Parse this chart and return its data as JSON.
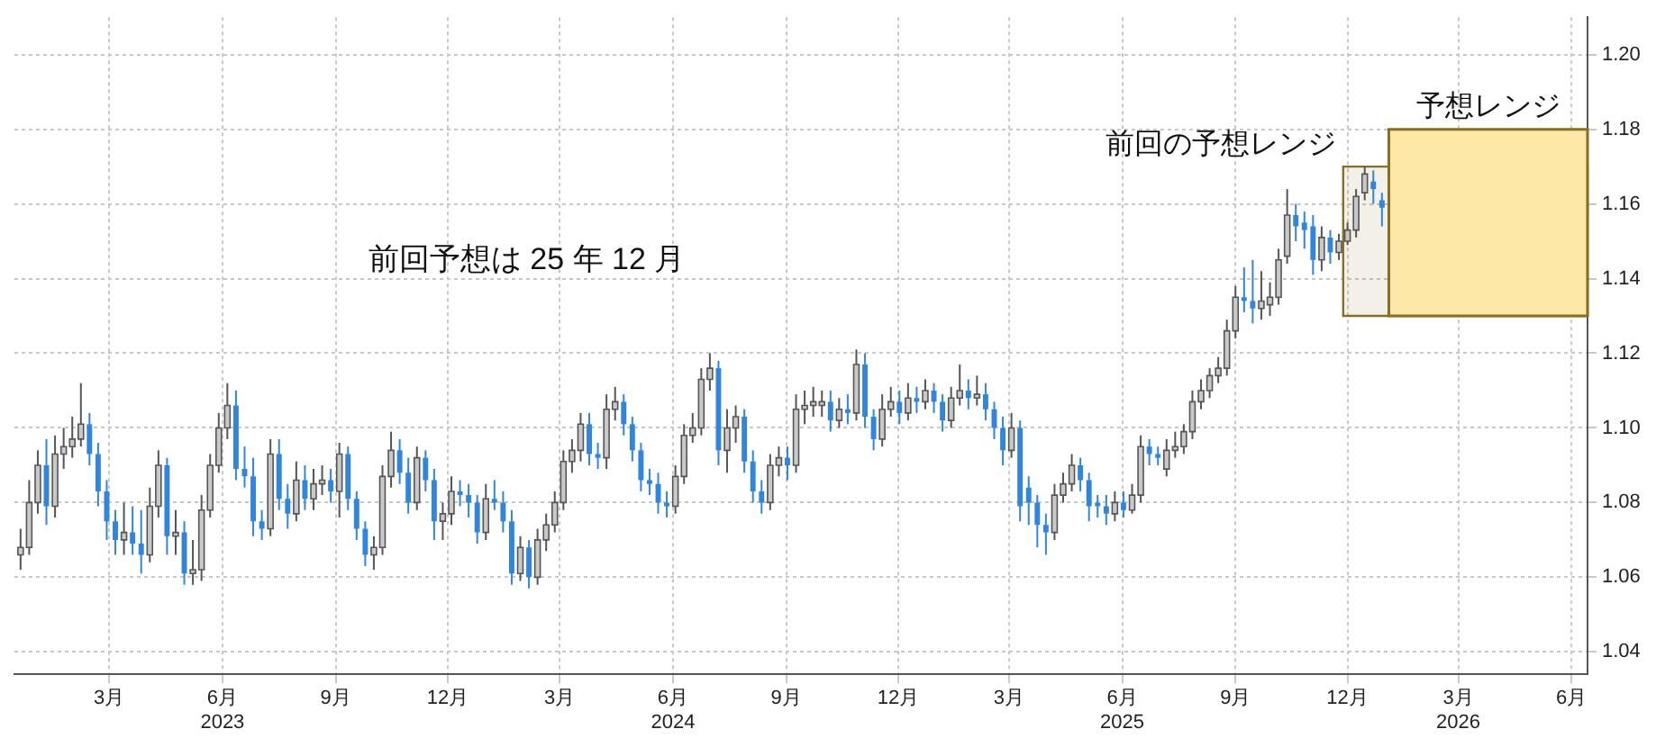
{
  "chart_data": {
    "type": "candlestick",
    "x": [
      "2022-12-19",
      "2022-12-26",
      "2023-01-02",
      "2023-01-09",
      "2023-01-16",
      "2023-01-23",
      "2023-01-30",
      "2023-02-06",
      "2023-02-13",
      "2023-02-20",
      "2023-02-27",
      "2023-03-06",
      "2023-03-13",
      "2023-03-20",
      "2023-03-27",
      "2023-04-03",
      "2023-04-10",
      "2023-04-17",
      "2023-04-24",
      "2023-05-01",
      "2023-05-08",
      "2023-05-15",
      "2023-05-22",
      "2023-05-29",
      "2023-06-05",
      "2023-06-12",
      "2023-06-19",
      "2023-06-26",
      "2023-07-03",
      "2023-07-10",
      "2023-07-17",
      "2023-07-24",
      "2023-07-31",
      "2023-08-07",
      "2023-08-14",
      "2023-08-21",
      "2023-08-28",
      "2023-09-04",
      "2023-09-11",
      "2023-09-18",
      "2023-09-25",
      "2023-10-02",
      "2023-10-09",
      "2023-10-16",
      "2023-10-23",
      "2023-10-30",
      "2023-11-06",
      "2023-11-13",
      "2023-11-20",
      "2023-11-27",
      "2023-12-04",
      "2023-12-11",
      "2023-12-18",
      "2023-12-25",
      "2024-01-01",
      "2024-01-08",
      "2024-01-15",
      "2024-01-22",
      "2024-01-29",
      "2024-02-05",
      "2024-02-12",
      "2024-02-19",
      "2024-02-26",
      "2024-03-04",
      "2024-03-11",
      "2024-03-18",
      "2024-03-25",
      "2024-04-01",
      "2024-04-08",
      "2024-04-15",
      "2024-04-22",
      "2024-04-29",
      "2024-05-06",
      "2024-05-13",
      "2024-05-20",
      "2024-05-27",
      "2024-06-03",
      "2024-06-10",
      "2024-06-17",
      "2024-06-24",
      "2024-07-01",
      "2024-07-08",
      "2024-07-15",
      "2024-07-22",
      "2024-07-29",
      "2024-08-05",
      "2024-08-12",
      "2024-08-19",
      "2024-08-26",
      "2024-09-02",
      "2024-09-09",
      "2024-09-16",
      "2024-09-23",
      "2024-09-30",
      "2024-10-07",
      "2024-10-14",
      "2024-10-21",
      "2024-10-28",
      "2024-11-04",
      "2024-11-11",
      "2024-11-18",
      "2024-11-25",
      "2024-12-02",
      "2024-12-09",
      "2024-12-16",
      "2024-12-23",
      "2024-12-30",
      "2025-01-06",
      "2025-01-13",
      "2025-01-20",
      "2025-01-27",
      "2025-02-03",
      "2025-02-10",
      "2025-02-17",
      "2025-02-24",
      "2025-03-03",
      "2025-03-10",
      "2025-03-17",
      "2025-03-24",
      "2025-03-31",
      "2025-04-07",
      "2025-04-14",
      "2025-04-21",
      "2025-04-28",
      "2025-05-05",
      "2025-05-12",
      "2025-05-19",
      "2025-05-26",
      "2025-06-02",
      "2025-06-09",
      "2025-06-16",
      "2025-06-23",
      "2025-06-30",
      "2025-07-07",
      "2025-07-14",
      "2025-07-21",
      "2025-07-28",
      "2025-08-04",
      "2025-08-11",
      "2025-08-18",
      "2025-08-25",
      "2025-09-01",
      "2025-09-08",
      "2025-09-15",
      "2025-09-22",
      "2025-09-29",
      "2025-10-06",
      "2025-10-13",
      "2025-10-20",
      "2025-10-27",
      "2025-11-03",
      "2025-11-10",
      "2025-11-17",
      "2025-11-24",
      "2025-12-01",
      "2025-12-08",
      "2025-12-15",
      "2025-12-22",
      "2025-12-29"
    ],
    "ohlc": [
      [
        1.066,
        1.073,
        1.062,
        1.068
      ],
      [
        1.068,
        1.086,
        1.066,
        1.08
      ],
      [
        1.08,
        1.094,
        1.077,
        1.09
      ],
      [
        1.09,
        1.097,
        1.074,
        1.079
      ],
      [
        1.079,
        1.098,
        1.076,
        1.093
      ],
      [
        1.093,
        1.1,
        1.089,
        1.095
      ],
      [
        1.095,
        1.103,
        1.092,
        1.097
      ],
      [
        1.097,
        1.112,
        1.095,
        1.101
      ],
      [
        1.101,
        1.104,
        1.09,
        1.093
      ],
      [
        1.093,
        1.096,
        1.079,
        1.083
      ],
      [
        1.083,
        1.086,
        1.07,
        1.075
      ],
      [
        1.075,
        1.078,
        1.066,
        1.07
      ],
      [
        1.07,
        1.08,
        1.066,
        1.072
      ],
      [
        1.072,
        1.079,
        1.066,
        1.069
      ],
      [
        1.069,
        1.078,
        1.061,
        1.066
      ],
      [
        1.066,
        1.084,
        1.064,
        1.079
      ],
      [
        1.079,
        1.094,
        1.076,
        1.09
      ],
      [
        1.09,
        1.092,
        1.066,
        1.071
      ],
      [
        1.071,
        1.078,
        1.066,
        1.072
      ],
      [
        1.072,
        1.075,
        1.058,
        1.061
      ],
      [
        1.061,
        1.07,
        1.058,
        1.062
      ],
      [
        1.062,
        1.082,
        1.059,
        1.078
      ],
      [
        1.078,
        1.093,
        1.076,
        1.09
      ],
      [
        1.09,
        1.104,
        1.088,
        1.1
      ],
      [
        1.1,
        1.112,
        1.097,
        1.106
      ],
      [
        1.106,
        1.11,
        1.086,
        1.089
      ],
      [
        1.089,
        1.095,
        1.084,
        1.087
      ],
      [
        1.087,
        1.092,
        1.071,
        1.075
      ],
      [
        1.075,
        1.078,
        1.07,
        1.073
      ],
      [
        1.073,
        1.097,
        1.071,
        1.093
      ],
      [
        1.093,
        1.097,
        1.078,
        1.081
      ],
      [
        1.081,
        1.085,
        1.073,
        1.077
      ],
      [
        1.077,
        1.091,
        1.075,
        1.086
      ],
      [
        1.086,
        1.09,
        1.078,
        1.081
      ],
      [
        1.081,
        1.089,
        1.078,
        1.085
      ],
      [
        1.085,
        1.09,
        1.082,
        1.086
      ],
      [
        1.086,
        1.089,
        1.08,
        1.083
      ],
      [
        1.083,
        1.096,
        1.076,
        1.093
      ],
      [
        1.093,
        1.095,
        1.078,
        1.081
      ],
      [
        1.081,
        1.083,
        1.07,
        1.073
      ],
      [
        1.073,
        1.075,
        1.063,
        1.066
      ],
      [
        1.066,
        1.071,
        1.062,
        1.068
      ],
      [
        1.068,
        1.09,
        1.066,
        1.087
      ],
      [
        1.087,
        1.099,
        1.084,
        1.094
      ],
      [
        1.094,
        1.097,
        1.085,
        1.088
      ],
      [
        1.088,
        1.092,
        1.077,
        1.08
      ],
      [
        1.08,
        1.095,
        1.078,
        1.092
      ],
      [
        1.092,
        1.094,
        1.083,
        1.086
      ],
      [
        1.086,
        1.089,
        1.07,
        1.075
      ],
      [
        1.075,
        1.08,
        1.07,
        1.077
      ],
      [
        1.077,
        1.087,
        1.074,
        1.083
      ],
      [
        1.083,
        1.086,
        1.079,
        1.082
      ],
      [
        1.082,
        1.085,
        1.076,
        1.08
      ],
      [
        1.08,
        1.082,
        1.069,
        1.072
      ],
      [
        1.072,
        1.085,
        1.07,
        1.081
      ],
      [
        1.081,
        1.086,
        1.078,
        1.08
      ],
      [
        1.08,
        1.083,
        1.072,
        1.075
      ],
      [
        1.075,
        1.078,
        1.058,
        1.061
      ],
      [
        1.061,
        1.071,
        1.059,
        1.068
      ],
      [
        1.068,
        1.07,
        1.057,
        1.06
      ],
      [
        1.06,
        1.073,
        1.058,
        1.07
      ],
      [
        1.07,
        1.077,
        1.067,
        1.074
      ],
      [
        1.074,
        1.083,
        1.072,
        1.08
      ],
      [
        1.08,
        1.094,
        1.078,
        1.091
      ],
      [
        1.091,
        1.097,
        1.088,
        1.094
      ],
      [
        1.094,
        1.104,
        1.091,
        1.101
      ],
      [
        1.101,
        1.104,
        1.09,
        1.093
      ],
      [
        1.093,
        1.096,
        1.089,
        1.092
      ],
      [
        1.092,
        1.109,
        1.089,
        1.105
      ],
      [
        1.105,
        1.111,
        1.102,
        1.107
      ],
      [
        1.107,
        1.109,
        1.098,
        1.101
      ],
      [
        1.101,
        1.103,
        1.091,
        1.094
      ],
      [
        1.094,
        1.096,
        1.083,
        1.086
      ],
      [
        1.086,
        1.089,
        1.082,
        1.085
      ],
      [
        1.085,
        1.088,
        1.077,
        1.08
      ],
      [
        1.08,
        1.083,
        1.076,
        1.079
      ],
      [
        1.079,
        1.09,
        1.077,
        1.087
      ],
      [
        1.087,
        1.101,
        1.085,
        1.098
      ],
      [
        1.098,
        1.104,
        1.096,
        1.1
      ],
      [
        1.1,
        1.116,
        1.098,
        1.113
      ],
      [
        1.113,
        1.12,
        1.11,
        1.116
      ],
      [
        1.116,
        1.118,
        1.09,
        1.094
      ],
      [
        1.094,
        1.105,
        1.088,
        1.1
      ],
      [
        1.1,
        1.106,
        1.096,
        1.103
      ],
      [
        1.103,
        1.105,
        1.088,
        1.091
      ],
      [
        1.091,
        1.094,
        1.08,
        1.083
      ],
      [
        1.083,
        1.086,
        1.077,
        1.08
      ],
      [
        1.08,
        1.093,
        1.078,
        1.09
      ],
      [
        1.09,
        1.095,
        1.087,
        1.092
      ],
      [
        1.092,
        1.095,
        1.086,
        1.09
      ],
      [
        1.09,
        1.109,
        1.088,
        1.105
      ],
      [
        1.105,
        1.11,
        1.101,
        1.106
      ],
      [
        1.106,
        1.111,
        1.103,
        1.107
      ],
      [
        1.106,
        1.11,
        1.103,
        1.107
      ],
      [
        1.107,
        1.11,
        1.099,
        1.102
      ],
      [
        1.102,
        1.108,
        1.1,
        1.105
      ],
      [
        1.105,
        1.109,
        1.101,
        1.104
      ],
      [
        1.104,
        1.121,
        1.102,
        1.117
      ],
      [
        1.117,
        1.12,
        1.1,
        1.103
      ],
      [
        1.103,
        1.105,
        1.094,
        1.097
      ],
      [
        1.097,
        1.109,
        1.095,
        1.105
      ],
      [
        1.105,
        1.111,
        1.103,
        1.107
      ],
      [
        1.107,
        1.11,
        1.101,
        1.104
      ],
      [
        1.104,
        1.112,
        1.102,
        1.108
      ],
      [
        1.108,
        1.111,
        1.104,
        1.107
      ],
      [
        1.107,
        1.113,
        1.105,
        1.11
      ],
      [
        1.11,
        1.112,
        1.104,
        1.107
      ],
      [
        1.107,
        1.109,
        1.099,
        1.102
      ],
      [
        1.102,
        1.111,
        1.1,
        1.108
      ],
      [
        1.108,
        1.117,
        1.106,
        1.11
      ],
      [
        1.11,
        1.113,
        1.105,
        1.108
      ],
      [
        1.108,
        1.114,
        1.106,
        1.109
      ],
      [
        1.109,
        1.112,
        1.102,
        1.105
      ],
      [
        1.105,
        1.107,
        1.097,
        1.1
      ],
      [
        1.1,
        1.103,
        1.09,
        1.094
      ],
      [
        1.094,
        1.104,
        1.092,
        1.1
      ],
      [
        1.1,
        1.102,
        1.075,
        1.079
      ],
      [
        1.084,
        1.087,
        1.074,
        1.08
      ],
      [
        1.08,
        1.082,
        1.068,
        1.074
      ],
      [
        1.074,
        1.077,
        1.066,
        1.072
      ],
      [
        1.072,
        1.085,
        1.07,
        1.082
      ],
      [
        1.082,
        1.088,
        1.08,
        1.085
      ],
      [
        1.085,
        1.093,
        1.083,
        1.09
      ],
      [
        1.09,
        1.092,
        1.083,
        1.086
      ],
      [
        1.086,
        1.088,
        1.075,
        1.079
      ],
      [
        1.08,
        1.082,
        1.076,
        1.079
      ],
      [
        1.079,
        1.082,
        1.074,
        1.077
      ],
      [
        1.077,
        1.083,
        1.075,
        1.08
      ],
      [
        1.08,
        1.083,
        1.076,
        1.078
      ],
      [
        1.078,
        1.085,
        1.077,
        1.082
      ],
      [
        1.082,
        1.098,
        1.08,
        1.095
      ],
      [
        1.095,
        1.097,
        1.09,
        1.093
      ],
      [
        1.093,
        1.095,
        1.09,
        1.092
      ],
      [
        1.089,
        1.097,
        1.087,
        1.094
      ],
      [
        1.094,
        1.099,
        1.092,
        1.095
      ],
      [
        1.095,
        1.101,
        1.093,
        1.099
      ],
      [
        1.099,
        1.11,
        1.097,
        1.107
      ],
      [
        1.107,
        1.113,
        1.105,
        1.11
      ],
      [
        1.11,
        1.116,
        1.108,
        1.114
      ],
      [
        1.114,
        1.119,
        1.112,
        1.116
      ],
      [
        1.116,
        1.129,
        1.114,
        1.126
      ],
      [
        1.126,
        1.138,
        1.124,
        1.135
      ],
      [
        1.135,
        1.143,
        1.131,
        1.134
      ],
      [
        1.134,
        1.145,
        1.128,
        1.132
      ],
      [
        1.132,
        1.142,
        1.129,
        1.134
      ],
      [
        1.133,
        1.139,
        1.13,
        1.135
      ],
      [
        1.135,
        1.148,
        1.133,
        1.145
      ],
      [
        1.146,
        1.164,
        1.144,
        1.157
      ],
      [
        1.157,
        1.16,
        1.15,
        1.154
      ],
      [
        1.155,
        1.158,
        1.148,
        1.153
      ],
      [
        1.154,
        1.157,
        1.141,
        1.145
      ],
      [
        1.145,
        1.154,
        1.142,
        1.151
      ],
      [
        1.151,
        1.153,
        1.144,
        1.147
      ],
      [
        1.147,
        1.152,
        1.145,
        1.15
      ],
      [
        1.15,
        1.155,
        1.149,
        1.153
      ],
      [
        1.153,
        1.164,
        1.151,
        1.162
      ],
      [
        1.163,
        1.17,
        1.161,
        1.168
      ],
      [
        1.166,
        1.169,
        1.16,
        1.164
      ],
      [
        1.161,
        1.163,
        1.154,
        1.159
      ]
    ],
    "xlim": [
      "2022-12-14",
      "2026-06-14"
    ],
    "xticks": [
      {
        "value": "2023-03-01",
        "label": "3月"
      },
      {
        "value": "2023-06-01",
        "label": "6月\n2023"
      },
      {
        "value": "2023-09-01",
        "label": "9月"
      },
      {
        "value": "2023-12-01",
        "label": "12月"
      },
      {
        "value": "2024-03-01",
        "label": "3月"
      },
      {
        "value": "2024-06-01",
        "label": "6月\n2024"
      },
      {
        "value": "2024-09-01",
        "label": "9月"
      },
      {
        "value": "2024-12-01",
        "label": "12月"
      },
      {
        "value": "2025-03-01",
        "label": "3月"
      },
      {
        "value": "2025-06-01",
        "label": "6月\n2025"
      },
      {
        "value": "2025-09-01",
        "label": "9月"
      },
      {
        "value": "2025-12-01",
        "label": "12月"
      },
      {
        "value": "2026-03-01",
        "label": "3月\n2026"
      },
      {
        "value": "2026-06-01",
        "label": "6月"
      }
    ],
    "ylim": [
      1.034,
      1.21
    ],
    "yticks": [
      1.04,
      1.06,
      1.08,
      {
        "value": 1.1,
        "label": "1.10"
      },
      1.12,
      1.14,
      1.16,
      1.18,
      {
        "value": 1.2,
        "label": "1.20"
      }
    ],
    "grid": true,
    "bands": [
      {
        "axis": "y",
        "from": 1.13,
        "to": 1.17,
        "label": "前回の予想レンジ",
        "color": "#8a6d1e"
      },
      {
        "axis": "y",
        "from": 1.13,
        "to": 1.18,
        "label": "予想レンジ",
        "color": "#fde8a8"
      }
    ],
    "annotations": [
      "前回予想は 25 年 12 月"
    ]
  }
}
